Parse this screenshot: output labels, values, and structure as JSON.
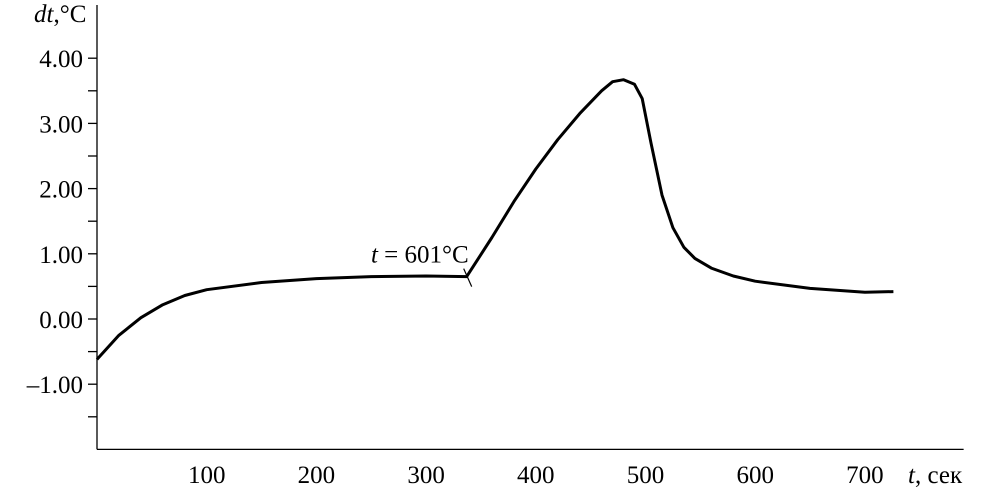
{
  "chart_data": {
    "type": "line",
    "title": "",
    "xlabel_italic": "t",
    "xlabel_unit": ", сек",
    "ylabel_italic": "dt",
    "ylabel_unit": ",°C",
    "xlim": [
      0,
      790
    ],
    "ylim": [
      -2.0,
      4.0
    ],
    "x_ticks": [
      100,
      200,
      300,
      400,
      500,
      600,
      700
    ],
    "x_tick_labels": [
      "100",
      "200",
      "300",
      "400",
      "500",
      "600",
      "700"
    ],
    "y_ticks": [
      4.0,
      3.0,
      2.0,
      1.0,
      0.0,
      -1.0
    ],
    "y_tick_labels": [
      "4.00",
      "3.00",
      "2.00",
      "1.00",
      "0.00",
      "–1.00"
    ],
    "y_minor_ticks": [
      3.5,
      2.5,
      1.5,
      0.5,
      -0.5,
      -1.5
    ],
    "grid": false,
    "series": [
      {
        "name": "dt",
        "x": [
          0,
          20,
          40,
          60,
          80,
          100,
          150,
          200,
          250,
          300,
          337,
          360,
          380,
          400,
          420,
          440,
          460,
          470,
          480,
          490,
          497,
          505,
          515,
          525,
          535,
          545,
          560,
          580,
          600,
          650,
          700,
          726
        ],
        "y": [
          -0.62,
          -0.25,
          0.02,
          0.22,
          0.36,
          0.45,
          0.56,
          0.62,
          0.65,
          0.66,
          0.65,
          1.25,
          1.8,
          2.3,
          2.75,
          3.15,
          3.5,
          3.64,
          3.67,
          3.6,
          3.38,
          2.7,
          1.9,
          1.4,
          1.1,
          0.93,
          0.78,
          0.66,
          0.58,
          0.47,
          0.41,
          0.42
        ]
      }
    ],
    "annotations": [
      {
        "x": 337,
        "y": 0.65,
        "text_italic": "t",
        "text": " = 601°C"
      }
    ]
  }
}
